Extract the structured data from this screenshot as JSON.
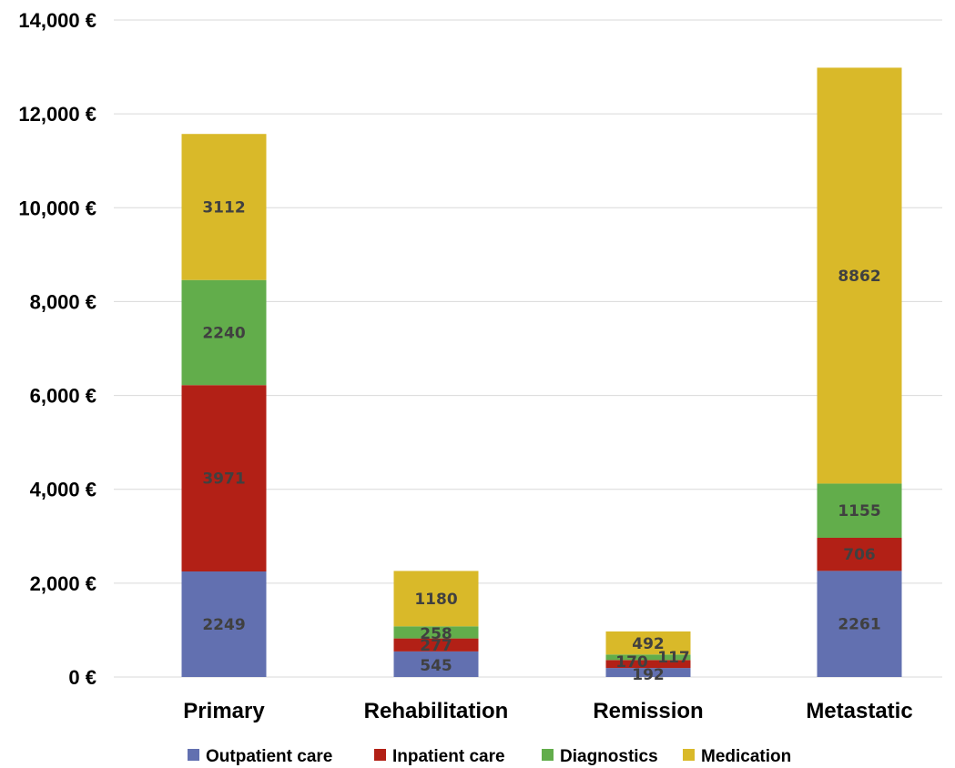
{
  "chart_data": {
    "type": "bar",
    "stacked": true,
    "title": "",
    "xlabel": "",
    "ylabel": "",
    "categories": [
      "Primary",
      "Rehabilitation",
      "Remission",
      "Metastatic"
    ],
    "ylim": [
      0,
      14000
    ],
    "yticks": [
      0,
      2000,
      4000,
      6000,
      8000,
      10000,
      12000,
      14000
    ],
    "ytick_labels": [
      "0 €",
      "2,000 €",
      "4,000 €",
      "6,000 €",
      "8,000 €",
      "10,000 €",
      "12,000 €",
      "14,000 €"
    ],
    "grid": true,
    "legend_position": "bottom",
    "series": [
      {
        "name": "Outpatient care",
        "color": "#6270b0",
        "values": [
          2249,
          545,
          192,
          2261
        ],
        "labels": [
          "2249",
          "545",
          "192",
          "2261"
        ]
      },
      {
        "name": "Inpatient care",
        "color": "#b22016",
        "values": [
          3971,
          277,
          170,
          706
        ],
        "labels": [
          "3971",
          "277",
          "170",
          "706"
        ]
      },
      {
        "name": "Diagnostics",
        "color": "#62ad4b",
        "values": [
          2240,
          258,
          117,
          1155
        ],
        "labels": [
          "2240",
          "258",
          "117",
          "1155"
        ]
      },
      {
        "name": "Medication",
        "color": "#d9b929",
        "values": [
          3112,
          1180,
          492,
          8862
        ],
        "labels": [
          "3112",
          "1180",
          "492",
          "8862"
        ]
      }
    ]
  }
}
